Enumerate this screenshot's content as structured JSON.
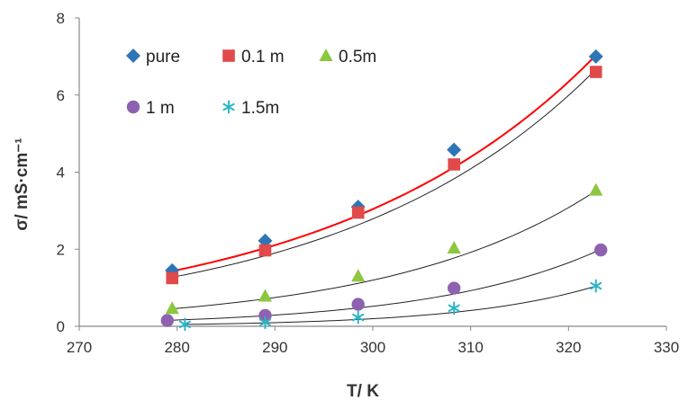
{
  "chart_data": {
    "type": "scatter",
    "xlabel": "T/ K",
    "ylabel": "σ/ mS·cm⁻¹",
    "xlim": [
      270,
      330
    ],
    "ylim": [
      0,
      8
    ],
    "x_ticks": [
      "270",
      "280",
      "290",
      "300",
      "310",
      "320",
      "330"
    ],
    "y_ticks": [
      "0",
      "2",
      "4",
      "6",
      "8"
    ],
    "grid": false,
    "legend_position": "top-left, inside plot",
    "trendline": "exponential fit per series",
    "series": [
      {
        "name": "pure",
        "marker": "diamond",
        "color": "#2E75B6",
        "points": [
          [
            279.5,
            1.45
          ],
          [
            289.0,
            2.22
          ],
          [
            298.5,
            3.1
          ],
          [
            308.3,
            4.58
          ],
          [
            322.8,
            7.0
          ]
        ],
        "fit": {
          "a": 1.431,
          "b": 0.03677,
          "x0": 279.5,
          "color": "#FF0000"
        }
      },
      {
        "name": "0.1 m",
        "marker": "square",
        "color": "#E04A4A",
        "points": [
          [
            279.5,
            1.25
          ],
          [
            289.0,
            1.97
          ],
          [
            298.5,
            2.95
          ],
          [
            308.3,
            4.2
          ],
          [
            322.8,
            6.6
          ]
        ],
        "fit": {
          "a": 1.272,
          "b": 0.03826,
          "x0": 279.5,
          "color": "#222222"
        }
      },
      {
        "name": "0.5m",
        "marker": "triangle",
        "color": "#8DC63F",
        "points": [
          [
            279.5,
            0.46
          ],
          [
            289.0,
            0.78
          ],
          [
            298.5,
            1.3
          ],
          [
            308.3,
            2.03
          ],
          [
            322.8,
            3.53
          ]
        ],
        "fit": {
          "a": 0.454,
          "b": 0.04727,
          "x0": 279.5,
          "color": "#222222"
        }
      },
      {
        "name": "1 m",
        "marker": "circle",
        "color": "#8E62B0",
        "points": [
          [
            279.0,
            0.15
          ],
          [
            289.0,
            0.28
          ],
          [
            298.5,
            0.57
          ],
          [
            308.3,
            0.99
          ],
          [
            323.3,
            1.98
          ]
        ],
        "fit": {
          "a": 0.1541,
          "b": 0.05782,
          "x0": 279.0,
          "color": "#222222"
        }
      },
      {
        "name": "1.5m",
        "marker": "asterisk",
        "color": "#2BB5C8",
        "points": [
          [
            280.8,
            0.05
          ],
          [
            289.0,
            0.1
          ],
          [
            298.5,
            0.23
          ],
          [
            308.3,
            0.47
          ],
          [
            322.8,
            1.05
          ]
        ],
        "fit": {
          "a": 0.0486,
          "b": 0.07303,
          "x0": 280.8,
          "color": "#222222"
        }
      }
    ]
  }
}
